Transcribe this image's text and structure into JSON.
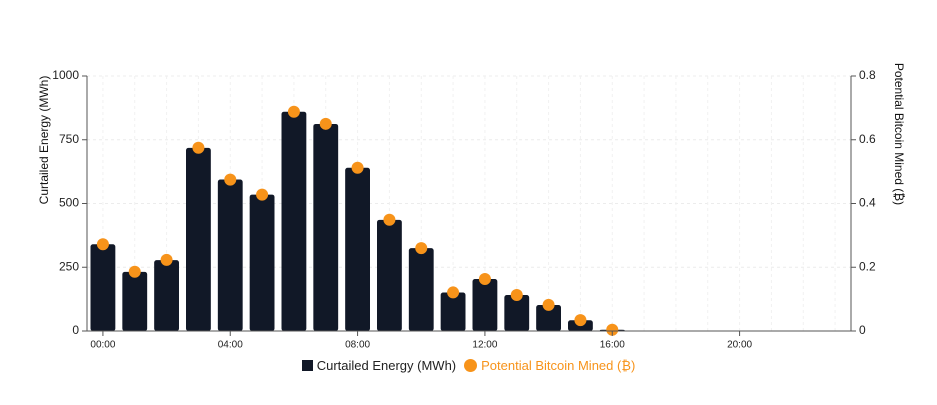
{
  "chart_data": {
    "type": "bar",
    "x_ticks": [
      "00:00",
      "04:00",
      "08:00",
      "12:00",
      "16:00",
      "20:00"
    ],
    "x": [
      0,
      1,
      2,
      3,
      4,
      5,
      6,
      7,
      8,
      9,
      10,
      11,
      12,
      13,
      14,
      15,
      16,
      17,
      18,
      19,
      20,
      21,
      22,
      23
    ],
    "xlim": [
      0,
      23
    ],
    "series": [
      {
        "name": "Curtailed Energy (MWh)",
        "kind": "bar",
        "axis": "left",
        "color": "#111827",
        "values": [
          340,
          232,
          278,
          718,
          594,
          535,
          860,
          812,
          640,
          436,
          325,
          151,
          204,
          141,
          102,
          42,
          5,
          0,
          0,
          0,
          0,
          0,
          0,
          0
        ]
      },
      {
        "name": "Potential Bitcoin Mined (₿)",
        "kind": "scatter",
        "axis": "right",
        "color": "#f7931a",
        "values": [
          0.272,
          0.186,
          0.223,
          0.575,
          0.475,
          0.428,
          0.688,
          0.65,
          0.512,
          0.349,
          0.26,
          0.121,
          0.163,
          0.113,
          0.082,
          0.034,
          0.004,
          null,
          null,
          null,
          null,
          null,
          null,
          null
        ]
      }
    ],
    "ylabel": "Curtailed Energy (MWh)",
    "ylim": [
      0,
      1000
    ],
    "yticks": [
      0,
      250,
      500,
      750,
      1000
    ],
    "y2label": "Potential Bitcoin Mined (₿)",
    "y2lim": [
      0,
      0.8
    ],
    "y2ticks": [
      0,
      0.2,
      0.4,
      0.6,
      0.8
    ],
    "grid": true,
    "legend_position": "bottom-center"
  }
}
